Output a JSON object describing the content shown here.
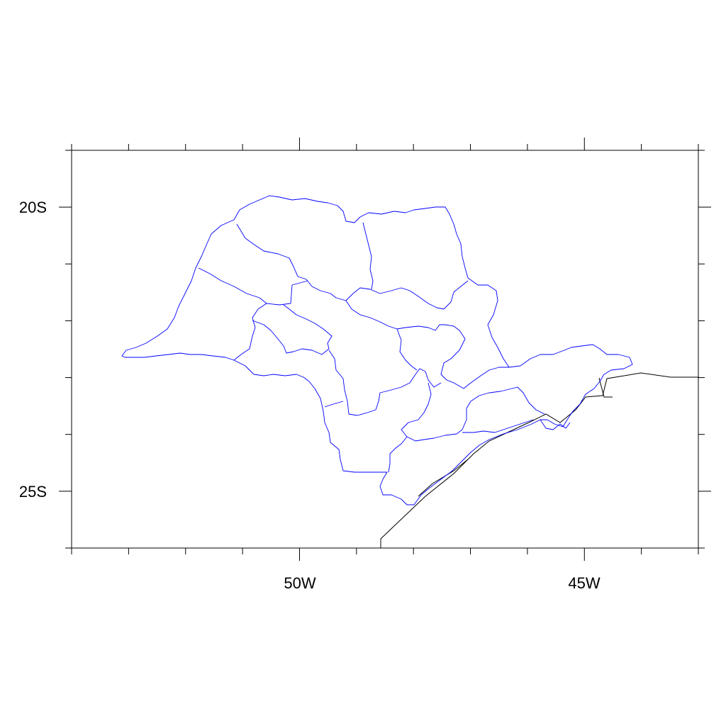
{
  "map": {
    "lat_labels": [
      "20S",
      "25S"
    ],
    "lon_labels": [
      "50W",
      "45W"
    ],
    "lon_range": [
      -54,
      -43
    ],
    "lat_range": [
      -26,
      -19
    ],
    "major_lon_ticks": [
      -50,
      -45
    ],
    "major_lat_ticks": [
      -20,
      -25
    ],
    "minor_tick_step_deg": 1,
    "colors": {
      "frame": "#000000",
      "region_boundary": "#0000ff",
      "coastline": "#000000",
      "background": "#ffffff"
    }
  }
}
